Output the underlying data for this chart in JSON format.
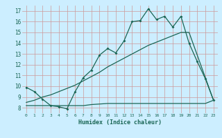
{
  "title": "",
  "xlabel": "Humidex (Indice chaleur)",
  "bg_color": "#cceeff",
  "grid_color": "#cc9999",
  "line_color": "#1a6655",
  "xlim": [
    -0.5,
    23.5
  ],
  "ylim": [
    7.5,
    17.5
  ],
  "yticks": [
    8,
    9,
    10,
    11,
    12,
    13,
    14,
    15,
    16,
    17
  ],
  "xticks": [
    0,
    1,
    2,
    3,
    4,
    5,
    6,
    7,
    8,
    9,
    10,
    11,
    12,
    13,
    14,
    15,
    16,
    17,
    18,
    19,
    20,
    21,
    22,
    23
  ],
  "line1_x": [
    0,
    1,
    2,
    3,
    4,
    5,
    6,
    7,
    8,
    9,
    10,
    11,
    12,
    13,
    14,
    15,
    16,
    17,
    18,
    19,
    20,
    21,
    22,
    23
  ],
  "line1_y": [
    9.9,
    9.5,
    8.8,
    8.2,
    8.1,
    7.9,
    9.5,
    10.8,
    11.5,
    12.9,
    13.5,
    13.1,
    14.2,
    16.0,
    16.1,
    17.2,
    16.2,
    16.5,
    15.5,
    16.5,
    14.0,
    12.3,
    10.7,
    8.7
  ],
  "line2_x": [
    0,
    1,
    2,
    3,
    4,
    5,
    6,
    7,
    8,
    9,
    10,
    11,
    12,
    13,
    14,
    15,
    16,
    17,
    18,
    19,
    20,
    23
  ],
  "line2_y": [
    8.5,
    8.7,
    9.0,
    9.2,
    9.5,
    9.8,
    10.1,
    10.5,
    10.9,
    11.3,
    11.8,
    12.2,
    12.6,
    13.0,
    13.4,
    13.8,
    14.1,
    14.4,
    14.7,
    15.0,
    15.0,
    8.7
  ],
  "line3_x": [
    0,
    1,
    2,
    3,
    4,
    5,
    6,
    7,
    8,
    9,
    10,
    11,
    12,
    13,
    14,
    15,
    16,
    17,
    18,
    19,
    20,
    21,
    22,
    23
  ],
  "line3_y": [
    8.2,
    8.2,
    8.2,
    8.2,
    8.2,
    8.2,
    8.2,
    8.2,
    8.3,
    8.35,
    8.4,
    8.4,
    8.4,
    8.4,
    8.4,
    8.4,
    8.4,
    8.4,
    8.4,
    8.4,
    8.4,
    8.4,
    8.4,
    8.7
  ]
}
